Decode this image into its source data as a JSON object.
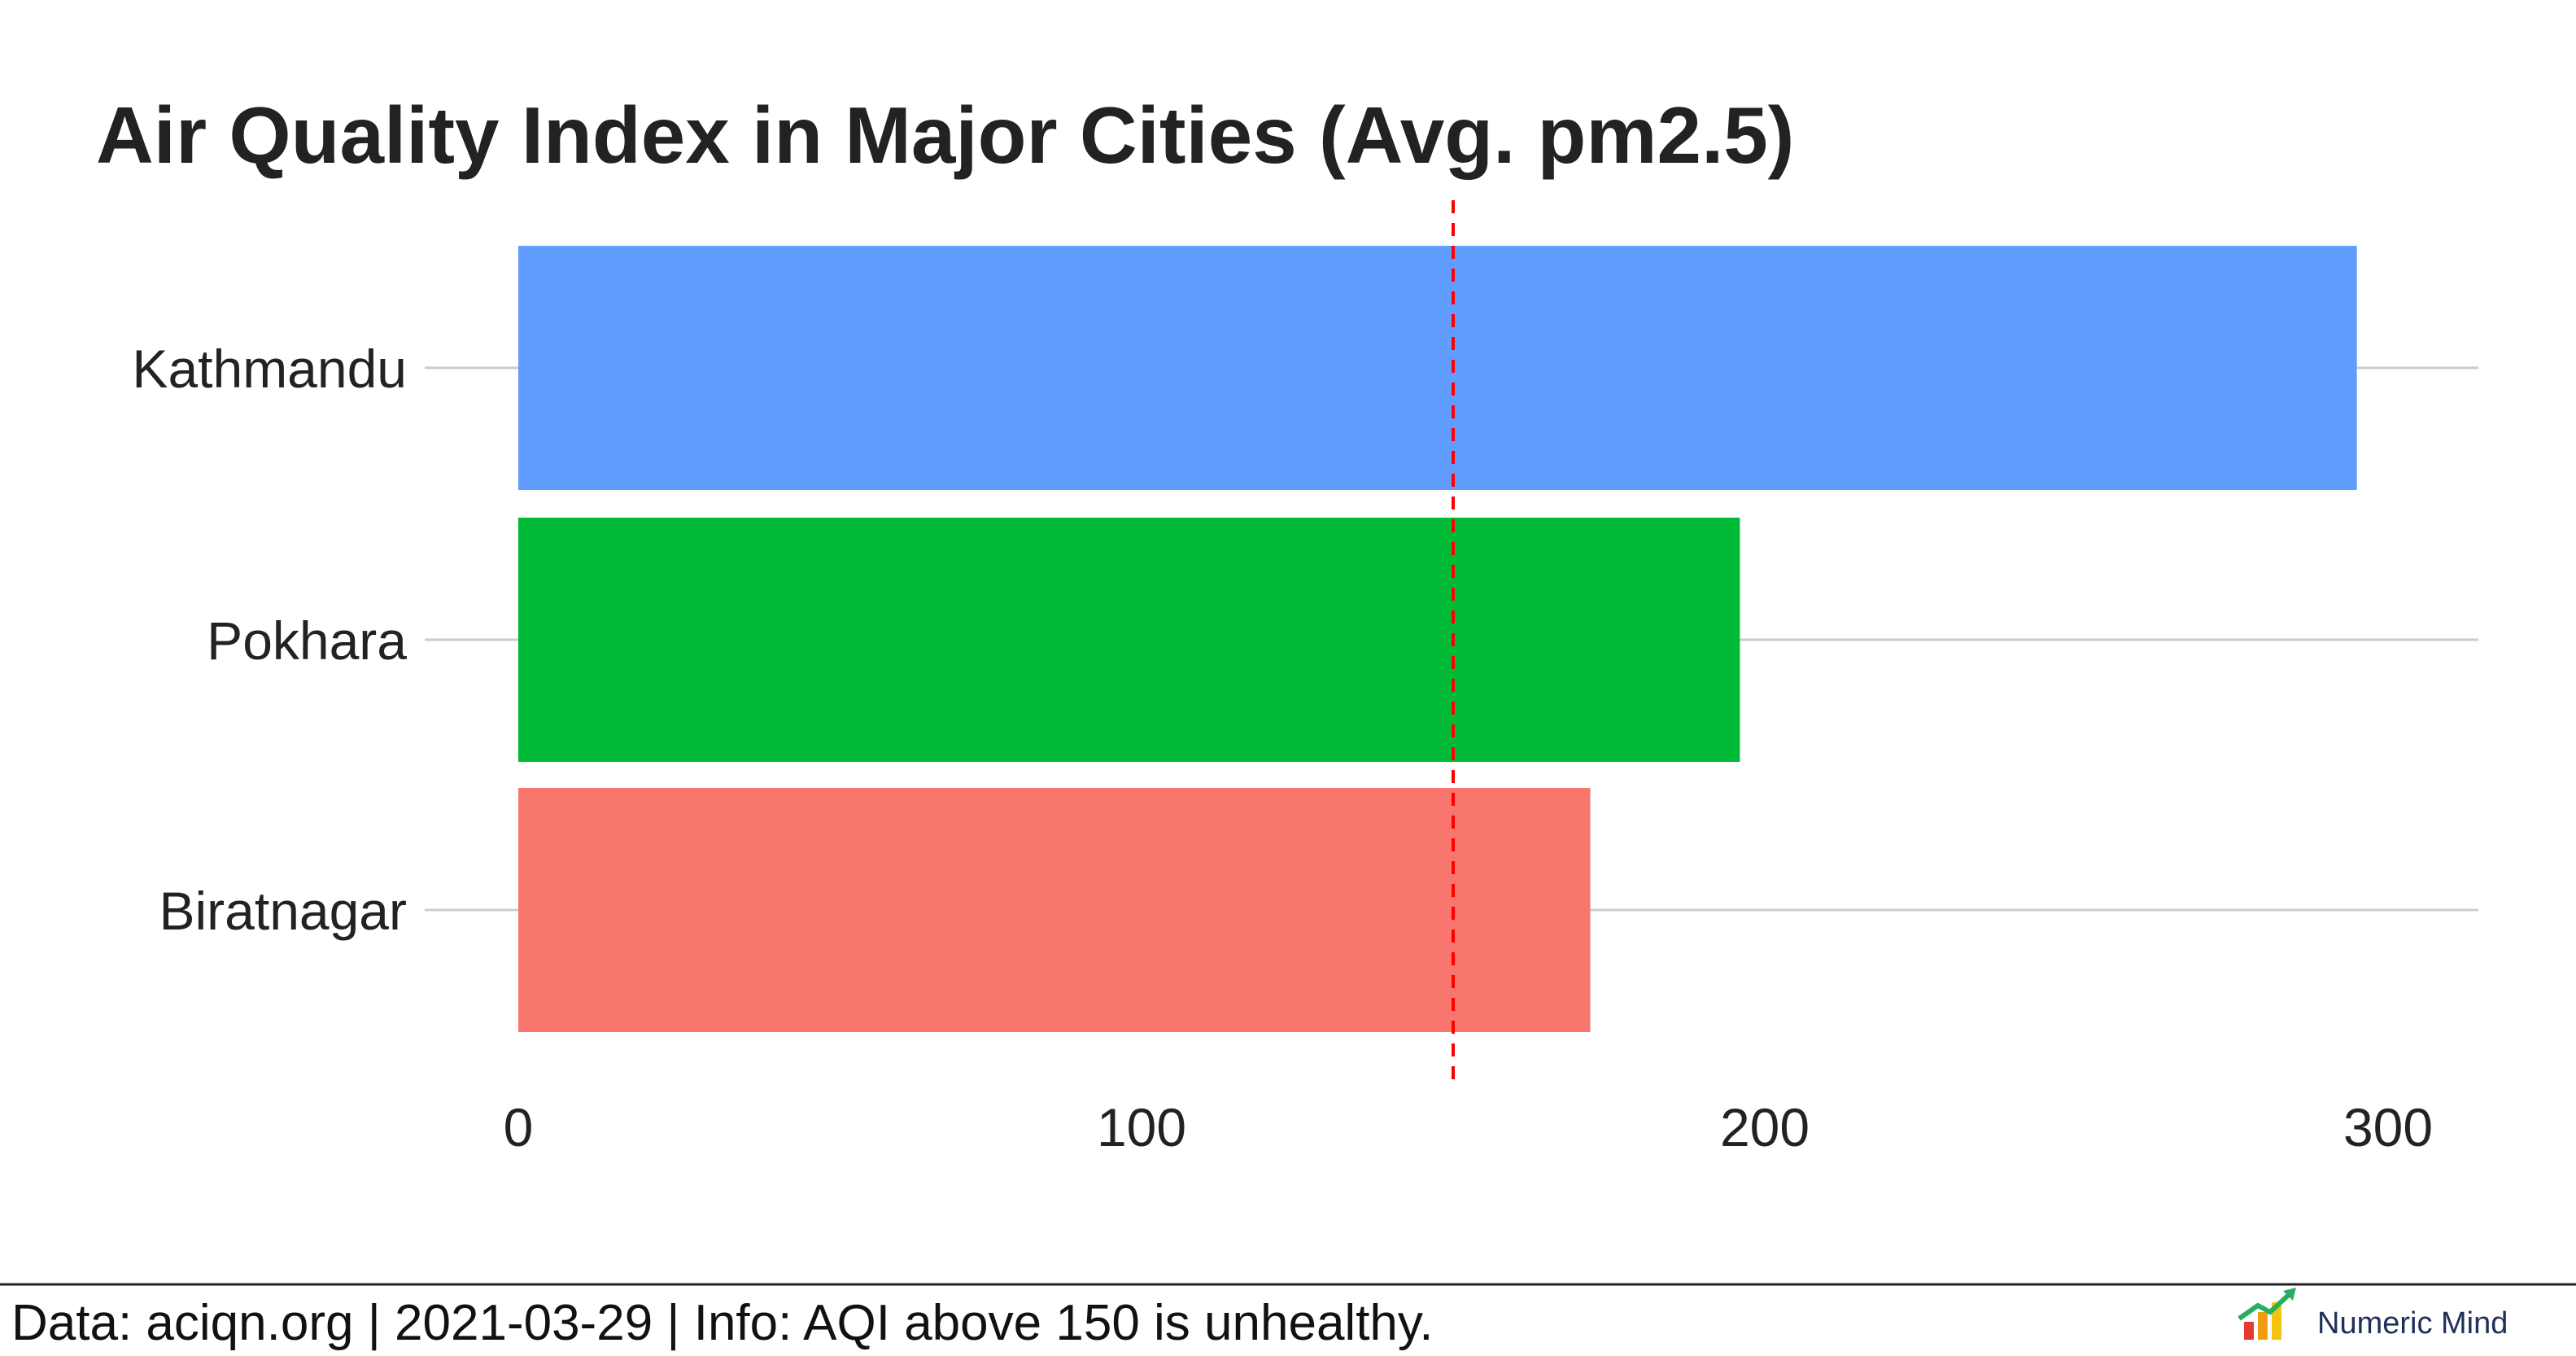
{
  "chart_data": {
    "type": "bar",
    "orientation": "horizontal",
    "title": "Air Quality Index in Major Cities (Avg. pm2.5)",
    "xlabel": "",
    "ylabel": "",
    "categories": [
      "Kathmandu",
      "Pokhara",
      "Biratnagar"
    ],
    "values": [
      295,
      196,
      172
    ],
    "bar_colors": [
      "#619CFF",
      "#00BA38",
      "#F8766D"
    ],
    "xlim": [
      0,
      310
    ],
    "x_ticks": [
      0,
      100,
      200,
      300
    ],
    "x_tick_labels": [
      "0",
      "100",
      "200",
      "300"
    ],
    "reference_line": {
      "value": 150,
      "style": "dashed",
      "color": "#ff0000"
    },
    "grid": "horizontal-major",
    "legend": "none"
  },
  "footer": {
    "caption": "Data: aciqn.org |  2021-03-29  | Info: AQI above 150 is unhealthy.",
    "brand": "Numeric Mind",
    "brand_icon": "rising-chart-logo"
  }
}
